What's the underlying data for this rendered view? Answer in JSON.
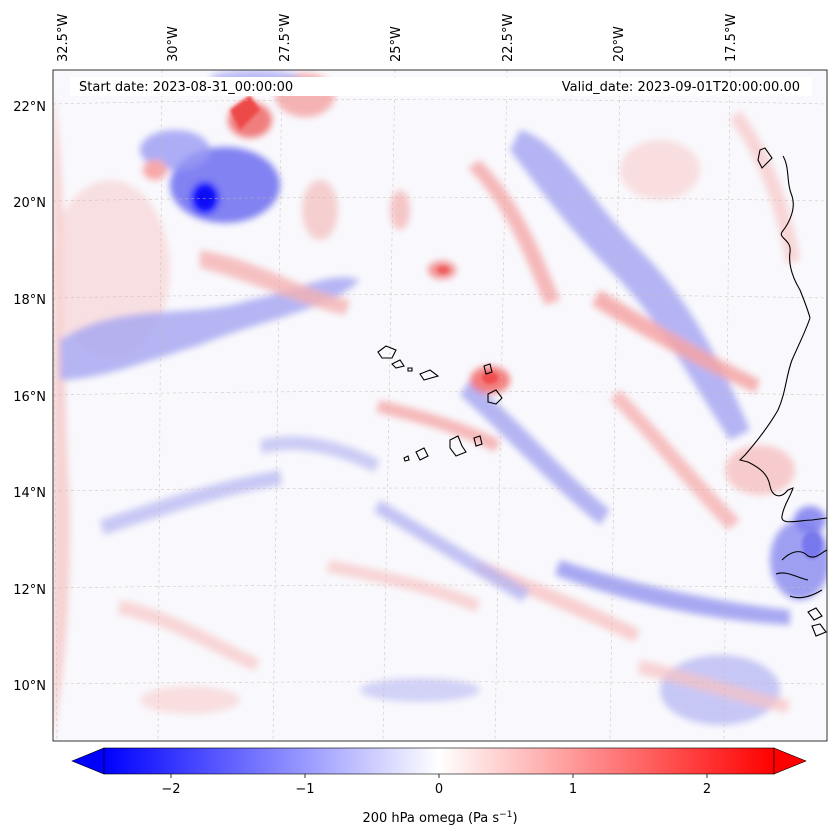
{
  "annotations": {
    "start_date": "Start date: 2023-08-31_00:00:00",
    "valid_date": "Valid_date: 2023-09-01T20:00:00.00"
  },
  "axes": {
    "lon_ticks": [
      "32.5°W",
      "30°W",
      "27.5°W",
      "25°W",
      "22.5°W",
      "20°W",
      "17.5°W"
    ],
    "lat_ticks": [
      "22°N",
      "20°N",
      "18°N",
      "16°N",
      "14°N",
      "12°N",
      "10°N"
    ]
  },
  "colorbar": {
    "label": "200 hPa omega (Pa s",
    "label_sup": "−1",
    "label_end": ")",
    "ticks": [
      "−2",
      "−1",
      "0",
      "1",
      "2"
    ],
    "range": [
      -2.6,
      2.6
    ],
    "colors": {
      "negative": "#0000ff",
      "zero": "#ffffff",
      "positive": "#ff0000"
    }
  },
  "map": {
    "variable": "200 hPa omega",
    "colormap": "bwr",
    "gridlines": true,
    "extent_lon": [
      -33.0,
      -15.5
    ],
    "extent_lat": [
      8.9,
      22.8
    ]
  }
}
